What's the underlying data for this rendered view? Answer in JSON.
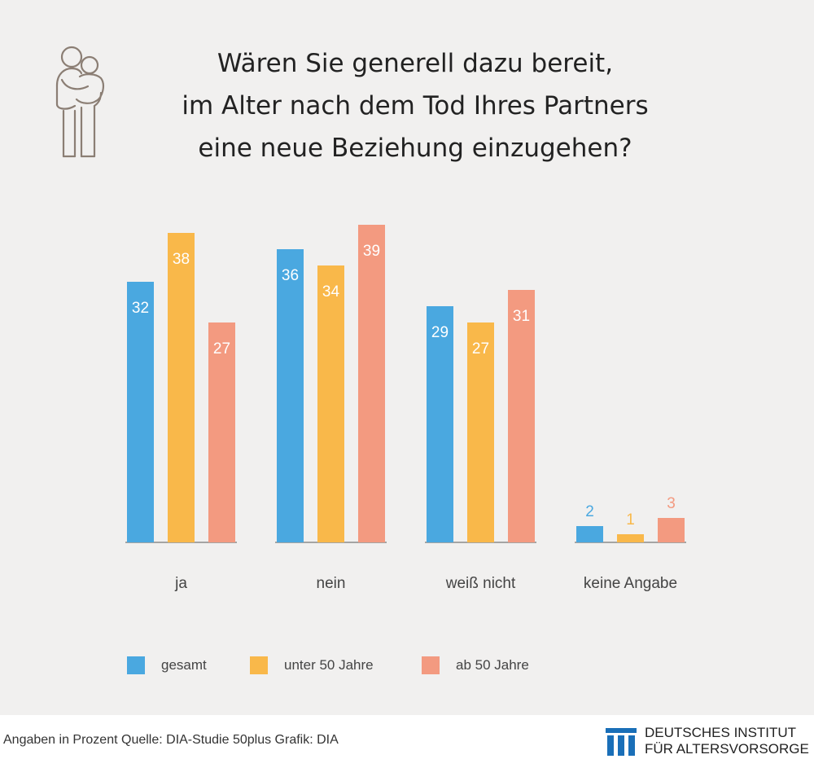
{
  "header": {
    "title_lines": [
      "Wären Sie generell dazu bereit,",
      "im Alter nach dem Tod Ihres Partners",
      "eine neue Beziehung einzugehen?"
    ],
    "icon": "couple-embrace-icon"
  },
  "colors": {
    "gesamt": "#4aa8e0",
    "unter_50": "#f9b84a",
    "ab_50": "#f39a80",
    "baseline": "#8a8a8a",
    "panel": "#f1f0ef",
    "logo": "#1a6fb8"
  },
  "chart_data": {
    "type": "bar",
    "categories": [
      "ja",
      "nein",
      "weiß nicht",
      "keine Angabe"
    ],
    "series": [
      {
        "name": "gesamt",
        "values": [
          32,
          36,
          29,
          2
        ]
      },
      {
        "name": "unter 50 Jahre",
        "values": [
          38,
          34,
          27,
          1
        ]
      },
      {
        "name": "ab 50 Jahre",
        "values": [
          27,
          39,
          31,
          3
        ]
      }
    ],
    "unit": "Prozent",
    "ylim": [
      0,
      39
    ],
    "grid": false,
    "legend": "bottom"
  },
  "footer": {
    "note": "Angaben in Prozent  Quelle: DIA-Studie 50plus  Grafik: DIA",
    "logo_line1": "DEUTSCHES INSTITUT",
    "logo_line2": "FÜR ALTERSVORSORGE"
  }
}
